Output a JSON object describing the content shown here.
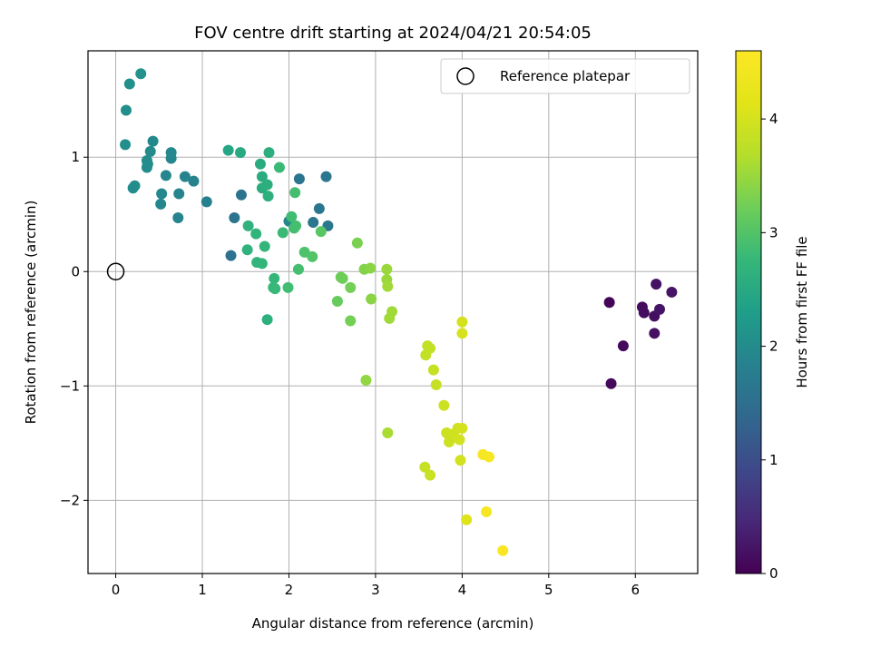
{
  "chart_data": {
    "type": "scatter",
    "title": "FOV centre drift starting at 2024/04/21 20:54:05",
    "xlabel": "Angular distance from reference (arcmin)",
    "ylabel": "Rotation from reference (arcmin)",
    "xlim": [
      -0.32,
      6.72
    ],
    "ylim": [
      -2.64,
      1.93
    ],
    "xticks": [
      0,
      1,
      2,
      3,
      4,
      5,
      6
    ],
    "yticks": [
      -2,
      -1,
      0,
      1
    ],
    "grid": true,
    "legend": {
      "position": "top-right",
      "entries": [
        "Reference platepar"
      ]
    },
    "reference_point": {
      "x": 0,
      "y": 0
    },
    "colorbar": {
      "label": "Hours from first FF file",
      "range": [
        0,
        4.6
      ],
      "ticks": [
        0,
        1,
        2,
        3,
        4
      ],
      "colormap": "viridis"
    },
    "points": [
      {
        "x": 5.7,
        "y": -0.27,
        "c": 0.05
      },
      {
        "x": 5.72,
        "y": -0.98,
        "c": 0.08
      },
      {
        "x": 5.86,
        "y": -0.65,
        "c": 0.1
      },
      {
        "x": 6.08,
        "y": -0.31,
        "c": 0.12
      },
      {
        "x": 6.1,
        "y": -0.36,
        "c": 0.14
      },
      {
        "x": 6.22,
        "y": -0.39,
        "c": 0.16
      },
      {
        "x": 6.22,
        "y": -0.54,
        "c": 0.18
      },
      {
        "x": 6.24,
        "y": -0.11,
        "c": 0.2
      },
      {
        "x": 6.28,
        "y": -0.33,
        "c": 0.22
      },
      {
        "x": 6.42,
        "y": -0.18,
        "c": 0.24
      },
      {
        "x": 1.33,
        "y": 0.14,
        "c": 1.55
      },
      {
        "x": 1.37,
        "y": 0.47,
        "c": 1.6
      },
      {
        "x": 1.45,
        "y": 0.67,
        "c": 1.6
      },
      {
        "x": 2.12,
        "y": 0.81,
        "c": 1.62
      },
      {
        "x": 2.28,
        "y": 0.43,
        "c": 1.62
      },
      {
        "x": 2.35,
        "y": 0.55,
        "c": 1.62
      },
      {
        "x": 2.43,
        "y": 0.83,
        "c": 1.65
      },
      {
        "x": 2.45,
        "y": 0.4,
        "c": 1.65
      },
      {
        "x": 2.0,
        "y": 0.44,
        "c": 1.9
      },
      {
        "x": 1.05,
        "y": 0.61,
        "c": 1.8
      },
      {
        "x": 0.9,
        "y": 0.79,
        "c": 1.85
      },
      {
        "x": 0.8,
        "y": 0.83,
        "c": 1.85
      },
      {
        "x": 0.73,
        "y": 0.68,
        "c": 1.88
      },
      {
        "x": 0.72,
        "y": 0.47,
        "c": 1.88
      },
      {
        "x": 0.58,
        "y": 0.84,
        "c": 1.9
      },
      {
        "x": 0.53,
        "y": 0.68,
        "c": 1.9
      },
      {
        "x": 0.52,
        "y": 0.59,
        "c": 1.92
      },
      {
        "x": 0.64,
        "y": 0.99,
        "c": 1.92
      },
      {
        "x": 0.64,
        "y": 1.04,
        "c": 1.95
      },
      {
        "x": 0.43,
        "y": 1.14,
        "c": 1.95
      },
      {
        "x": 0.4,
        "y": 1.05,
        "c": 1.98
      },
      {
        "x": 0.36,
        "y": 0.97,
        "c": 2.0
      },
      {
        "x": 0.37,
        "y": 0.94,
        "c": 2.0
      },
      {
        "x": 0.36,
        "y": 0.91,
        "c": 2.0
      },
      {
        "x": 0.22,
        "y": 0.75,
        "c": 2.02
      },
      {
        "x": 0.2,
        "y": 0.73,
        "c": 2.02
      },
      {
        "x": 0.11,
        "y": 1.11,
        "c": 2.05
      },
      {
        "x": 0.12,
        "y": 1.41,
        "c": 2.05
      },
      {
        "x": 0.16,
        "y": 1.64,
        "c": 2.08
      },
      {
        "x": 0.29,
        "y": 1.73,
        "c": 2.1
      },
      {
        "x": 1.3,
        "y": 1.06,
        "c": 2.45
      },
      {
        "x": 1.44,
        "y": 1.04,
        "c": 2.5
      },
      {
        "x": 1.67,
        "y": 0.94,
        "c": 2.55
      },
      {
        "x": 1.69,
        "y": 0.83,
        "c": 2.55
      },
      {
        "x": 1.69,
        "y": 0.73,
        "c": 2.58
      },
      {
        "x": 1.75,
        "y": 0.76,
        "c": 2.6
      },
      {
        "x": 1.77,
        "y": 1.04,
        "c": 2.6
      },
      {
        "x": 1.76,
        "y": 0.66,
        "c": 2.62
      },
      {
        "x": 1.75,
        "y": -0.42,
        "c": 2.62
      },
      {
        "x": 1.52,
        "y": 0.19,
        "c": 2.65
      },
      {
        "x": 1.53,
        "y": 0.4,
        "c": 2.65
      },
      {
        "x": 1.62,
        "y": 0.33,
        "c": 2.68
      },
      {
        "x": 1.63,
        "y": 0.08,
        "c": 2.7
      },
      {
        "x": 1.69,
        "y": 0.07,
        "c": 2.7
      },
      {
        "x": 1.72,
        "y": 0.22,
        "c": 2.72
      },
      {
        "x": 1.83,
        "y": -0.06,
        "c": 2.75
      },
      {
        "x": 1.82,
        "y": -0.14,
        "c": 2.75
      },
      {
        "x": 1.84,
        "y": -0.15,
        "c": 2.78
      },
      {
        "x": 1.89,
        "y": 0.91,
        "c": 2.8
      },
      {
        "x": 1.93,
        "y": 0.34,
        "c": 2.8
      },
      {
        "x": 1.99,
        "y": -0.14,
        "c": 2.85
      },
      {
        "x": 2.03,
        "y": 0.48,
        "c": 2.85
      },
      {
        "x": 2.06,
        "y": 0.38,
        "c": 2.88
      },
      {
        "x": 2.07,
        "y": 0.69,
        "c": 2.88
      },
      {
        "x": 2.08,
        "y": 0.4,
        "c": 2.9
      },
      {
        "x": 2.11,
        "y": 0.02,
        "c": 2.9
      },
      {
        "x": 2.18,
        "y": 0.17,
        "c": 2.95
      },
      {
        "x": 2.27,
        "y": 0.13,
        "c": 3.0
      },
      {
        "x": 2.37,
        "y": 0.35,
        "c": 3.05
      },
      {
        "x": 2.56,
        "y": -0.26,
        "c": 3.15
      },
      {
        "x": 2.6,
        "y": -0.05,
        "c": 3.2
      },
      {
        "x": 2.62,
        "y": -0.06,
        "c": 3.2
      },
      {
        "x": 2.71,
        "y": -0.14,
        "c": 3.25
      },
      {
        "x": 2.71,
        "y": -0.43,
        "c": 3.25
      },
      {
        "x": 2.79,
        "y": 0.25,
        "c": 3.3
      },
      {
        "x": 2.87,
        "y": 0.02,
        "c": 3.35
      },
      {
        "x": 2.94,
        "y": 0.03,
        "c": 3.4
      },
      {
        "x": 2.95,
        "y": -0.24,
        "c": 3.4
      },
      {
        "x": 2.89,
        "y": -0.95,
        "c": 3.45
      },
      {
        "x": 3.13,
        "y": 0.02,
        "c": 3.5
      },
      {
        "x": 3.13,
        "y": -0.07,
        "c": 3.5
      },
      {
        "x": 3.14,
        "y": -0.13,
        "c": 3.55
      },
      {
        "x": 3.16,
        "y": -0.41,
        "c": 3.55
      },
      {
        "x": 3.19,
        "y": -0.35,
        "c": 3.55
      },
      {
        "x": 3.14,
        "y": -1.41,
        "c": 3.6
      },
      {
        "x": 3.58,
        "y": -0.73,
        "c": 3.8
      },
      {
        "x": 3.6,
        "y": -0.65,
        "c": 3.8
      },
      {
        "x": 3.63,
        "y": -0.67,
        "c": 3.82
      },
      {
        "x": 3.67,
        "y": -0.86,
        "c": 3.85
      },
      {
        "x": 3.7,
        "y": -0.99,
        "c": 3.85
      },
      {
        "x": 3.57,
        "y": -1.71,
        "c": 3.85
      },
      {
        "x": 3.63,
        "y": -1.78,
        "c": 3.88
      },
      {
        "x": 3.79,
        "y": -1.17,
        "c": 3.9
      },
      {
        "x": 3.82,
        "y": -1.41,
        "c": 3.9
      },
      {
        "x": 3.85,
        "y": -1.49,
        "c": 3.92
      },
      {
        "x": 3.9,
        "y": -1.42,
        "c": 3.95
      },
      {
        "x": 3.95,
        "y": -1.37,
        "c": 3.95
      },
      {
        "x": 3.97,
        "y": -1.47,
        "c": 3.98
      },
      {
        "x": 3.98,
        "y": -1.65,
        "c": 3.98
      },
      {
        "x": 4.0,
        "y": -1.37,
        "c": 4.0
      },
      {
        "x": 4.0,
        "y": -0.44,
        "c": 4.0
      },
      {
        "x": 4.0,
        "y": -0.54,
        "c": 4.02
      },
      {
        "x": 4.05,
        "y": -2.17,
        "c": 4.1
      },
      {
        "x": 4.24,
        "y": -1.6,
        "c": 4.5
      },
      {
        "x": 4.28,
        "y": -2.1,
        "c": 4.5
      },
      {
        "x": 4.31,
        "y": -1.62,
        "c": 4.5
      },
      {
        "x": 4.47,
        "y": -2.44,
        "c": 4.55
      }
    ]
  }
}
